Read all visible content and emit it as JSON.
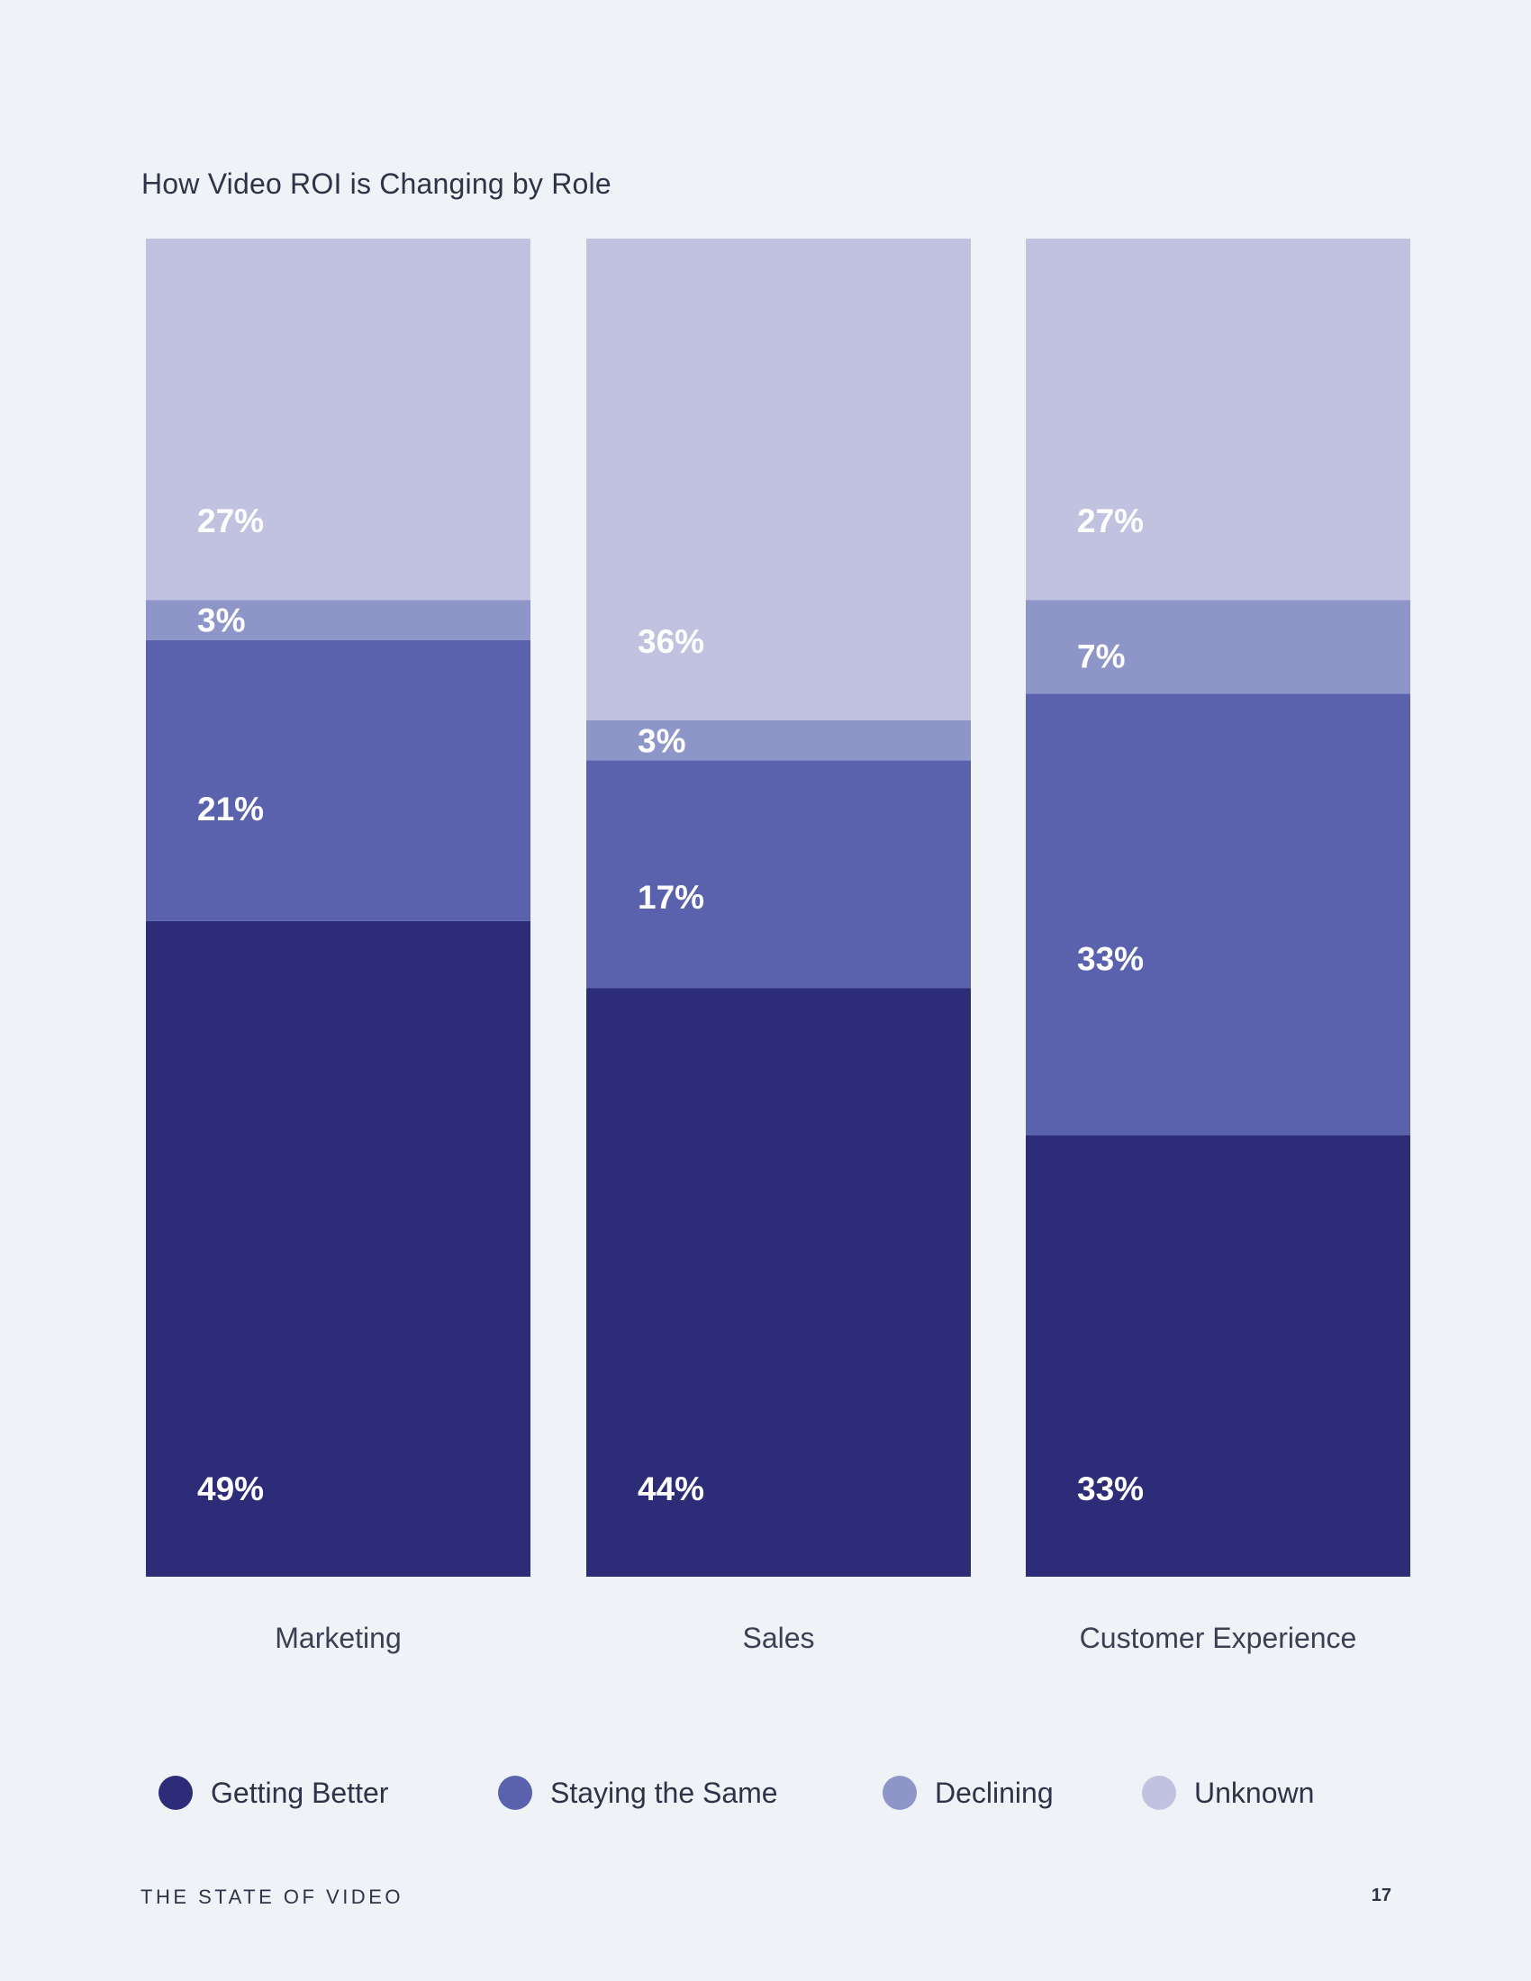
{
  "colors": {
    "getting_better": "#2d2c78",
    "staying_same": "#5b62ad",
    "declining": "#8e95c9",
    "unknown": "#c1c1e0",
    "background": "#eff2f7"
  },
  "chart_data": {
    "type": "bar",
    "stacked": true,
    "title": "How Video ROI is Changing by Role",
    "categories": [
      "Marketing",
      "Sales",
      "Customer Experience"
    ],
    "series": [
      {
        "name": "Getting Better",
        "values": [
          49,
          44,
          33
        ],
        "labels": [
          "49%",
          "44%",
          "33%"
        ]
      },
      {
        "name": "Staying the Same",
        "values": [
          21,
          17,
          33
        ],
        "labels": [
          "21%",
          "17%",
          "33%"
        ]
      },
      {
        "name": "Declining",
        "values": [
          3,
          3,
          7
        ],
        "labels": [
          "3%",
          "3%",
          "7%"
        ]
      },
      {
        "name": "Unknown",
        "values": [
          27,
          36,
          27
        ],
        "labels": [
          "27%",
          "36%",
          "27%"
        ]
      }
    ],
    "ylim": [
      0,
      100
    ],
    "xlabel": "",
    "ylabel": "",
    "grid": false,
    "legend_position": "bottom"
  },
  "legend": {
    "items": [
      {
        "label": "Getting Better"
      },
      {
        "label": "Staying the Same"
      },
      {
        "label": "Declining"
      },
      {
        "label": "Unknown"
      }
    ]
  },
  "footer": {
    "publication": "THE STATE OF VIDEO",
    "page_number": "17"
  }
}
